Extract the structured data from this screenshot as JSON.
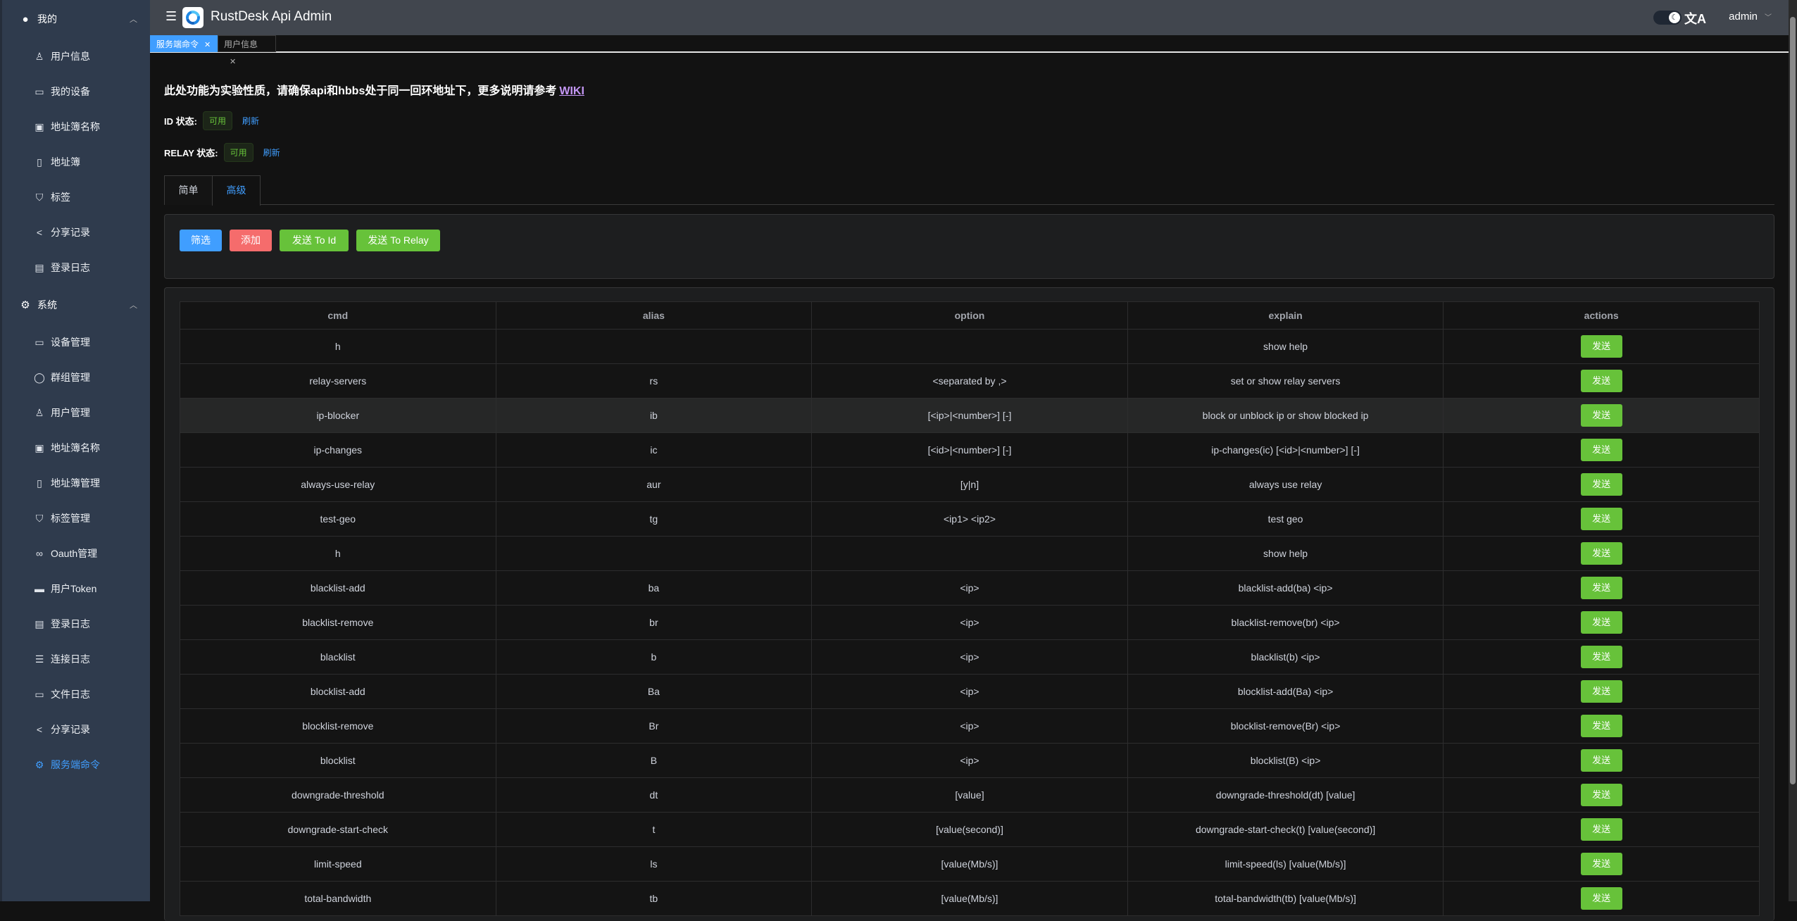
{
  "header": {
    "title": "RustDesk Api Admin",
    "user": "admin"
  },
  "tags": [
    {
      "label": "服务端命令",
      "active": true
    },
    {
      "label": "用户信息",
      "active": false
    }
  ],
  "sidebar": {
    "groups": [
      {
        "label": "我的",
        "icon": "user-icon",
        "items": [
          {
            "label": "用户信息",
            "icon": "user-outline-icon"
          },
          {
            "label": "我的设备",
            "icon": "monitor-icon"
          },
          {
            "label": "地址簿名称",
            "icon": "book-icon"
          },
          {
            "label": "地址簿",
            "icon": "notebook-icon"
          },
          {
            "label": "标签",
            "icon": "bookmark-icon"
          },
          {
            "label": "分享记录",
            "icon": "share-icon"
          },
          {
            "label": "登录日志",
            "icon": "clipboard-icon"
          }
        ]
      },
      {
        "label": "系统",
        "icon": "gear-icon",
        "items": [
          {
            "label": "设备管理",
            "icon": "monitor-icon"
          },
          {
            "label": "群组管理",
            "icon": "chat-icon"
          },
          {
            "label": "用户管理",
            "icon": "user-outline-icon"
          },
          {
            "label": "地址簿名称",
            "icon": "book-icon"
          },
          {
            "label": "地址簿管理",
            "icon": "notebook-icon"
          },
          {
            "label": "标签管理",
            "icon": "bookmark-icon"
          },
          {
            "label": "Oauth管理",
            "icon": "link-icon"
          },
          {
            "label": "用户Token",
            "icon": "ticket-icon"
          },
          {
            "label": "登录日志",
            "icon": "clipboard-icon"
          },
          {
            "label": "连接日志",
            "icon": "document-icon"
          },
          {
            "label": "文件日志",
            "icon": "files-icon"
          },
          {
            "label": "分享记录",
            "icon": "share-icon"
          },
          {
            "label": "服务端命令",
            "icon": "gear-icon",
            "active": true
          }
        ]
      }
    ]
  },
  "notice": {
    "text": "此处功能为实验性质，请确保api和hbbs处于同一回环地址下，更多说明请参考",
    "link": "WIKI"
  },
  "id_status": {
    "label": "ID 状态:",
    "value": "可用",
    "refresh": "刷新"
  },
  "relay_status": {
    "label": "RELAY 状态:",
    "value": "可用",
    "refresh": "刷新"
  },
  "tabs": [
    {
      "label": "简单",
      "active": false
    },
    {
      "label": "高级",
      "active": true
    }
  ],
  "toolbar": {
    "filter": "筛选",
    "add": "添加",
    "send_id": "发送 To Id",
    "send_relay": "发送 To Relay"
  },
  "colors": {
    "primary": "#409eff",
    "danger": "#f56c6c",
    "success": "#67c23a"
  },
  "table": {
    "columns": [
      "cmd",
      "alias",
      "option",
      "explain",
      "actions"
    ],
    "action_label": "发送",
    "rows": [
      [
        "h",
        "",
        "",
        "show help"
      ],
      [
        "relay-servers",
        "rs",
        "<separated by ,>",
        "set or show relay servers"
      ],
      [
        "ip-blocker",
        "ib",
        "[<ip>|<number>] [-]",
        "block or unblock ip or show blocked ip"
      ],
      [
        "ip-changes",
        "ic",
        "[<id>|<number>] [-]",
        "ip-changes(ic) [<id>|<number>] [-]"
      ],
      [
        "always-use-relay",
        "aur",
        "[y|n]",
        "always use relay"
      ],
      [
        "test-geo",
        "tg",
        "<ip1> <ip2>",
        "test geo"
      ],
      [
        "h",
        "",
        "",
        "show help"
      ],
      [
        "blacklist-add",
        "ba",
        "<ip>",
        "blacklist-add(ba) <ip>"
      ],
      [
        "blacklist-remove",
        "br",
        "<ip>",
        "blacklist-remove(br) <ip>"
      ],
      [
        "blacklist",
        "b",
        "<ip>",
        "blacklist(b) <ip>"
      ],
      [
        "blocklist-add",
        "Ba",
        "<ip>",
        "blocklist-add(Ba) <ip>"
      ],
      [
        "blocklist-remove",
        "Br",
        "<ip>",
        "blocklist-remove(Br) <ip>"
      ],
      [
        "blocklist",
        "B",
        "<ip>",
        "blocklist(B) <ip>"
      ],
      [
        "downgrade-threshold",
        "dt",
        "[value]",
        "downgrade-threshold(dt) [value]"
      ],
      [
        "downgrade-start-check",
        "t",
        "[value(second)]",
        "downgrade-start-check(t) [value(second)]"
      ],
      [
        "limit-speed",
        "ls",
        "[value(Mb/s)]",
        "limit-speed(ls) [value(Mb/s)]"
      ],
      [
        "total-bandwidth",
        "tb",
        "[value(Mb/s)]",
        "total-bandwidth(tb) [value(Mb/s)]"
      ]
    ]
  }
}
